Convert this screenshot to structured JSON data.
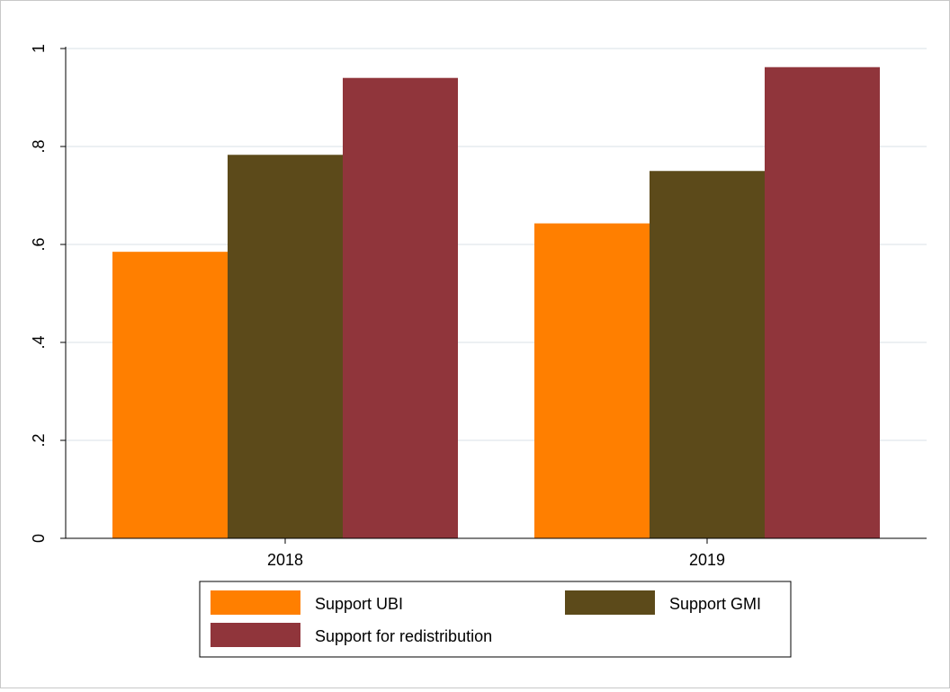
{
  "chart_data": {
    "type": "bar",
    "title": "",
    "xlabel": "",
    "ylabel": "",
    "categories": [
      "2018",
      "2019"
    ],
    "series": [
      {
        "name": "Support UBI",
        "values": [
          0.585,
          0.643
        ],
        "color": "#ff7f00"
      },
      {
        "name": "Support GMI",
        "values": [
          0.783,
          0.75
        ],
        "color": "#5c4a1a"
      },
      {
        "name": "Support for redistribution",
        "values": [
          0.94,
          0.962
        ],
        "color": "#90353b"
      }
    ],
    "ylim": [
      0,
      1
    ],
    "yticks": [
      0,
      0.2,
      0.4,
      0.6,
      0.8,
      1
    ],
    "ytick_labels": [
      "0",
      ".2",
      ".4",
      ".6",
      ".8",
      "1"
    ],
    "grid": true,
    "legend_position": "bottom"
  }
}
